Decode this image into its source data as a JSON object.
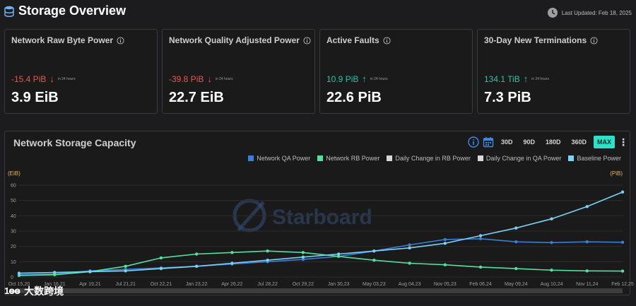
{
  "header": {
    "title": "Storage Overview",
    "last_updated": "Last Updated: Feb 18, 2025"
  },
  "cards": [
    {
      "title": "Network Raw Byte Power",
      "delta": "-15.4 PiB",
      "direction": "down",
      "delta_note": "in 24 hours",
      "value": "3.9 EiB"
    },
    {
      "title": "Network Quality Adjusted Power",
      "delta": "-39.8 PiB",
      "direction": "down",
      "delta_note": "in 24 hours",
      "value": "22.7 EiB"
    },
    {
      "title": "Active Faults",
      "delta": "10.9 PiB",
      "direction": "up",
      "delta_note": "in 24 hours",
      "value": "22.6 PiB"
    },
    {
      "title": "30-Day New Terminations",
      "delta": "134.1 TiB",
      "direction": "up",
      "delta_note": "in 24 hours",
      "value": "7.3 PiB"
    }
  ],
  "chart_panel": {
    "title": "Network Storage Capacity",
    "ranges": [
      "30D",
      "90D",
      "180D",
      "360D",
      "MAX"
    ],
    "active_range": "MAX"
  },
  "watermark": "Starboard",
  "overlay": {
    "mark": "1ꙩꙩ",
    "text": "大数跨境"
  },
  "colors": {
    "qa": "#3b7dd8",
    "rb": "#54e0a0",
    "baseline": "#7ad3f5",
    "down": "#ef5350",
    "up": "#26c6a6",
    "active_range": "#2de0c6",
    "axis_unit": "#f0b25e"
  },
  "chart_data": {
    "type": "line",
    "legend": [
      {
        "name": "Network QA Power",
        "color": "#3b7dd8"
      },
      {
        "name": "Network RB Power",
        "color": "#54e0a0"
      },
      {
        "name": "Daily Change in RB Power",
        "color": "#d9d9d9"
      },
      {
        "name": "Daily Change in QA Power",
        "color": "#d9d9d9"
      },
      {
        "name": "Baseline Power",
        "color": "#7ad3f5"
      }
    ],
    "left_unit": "(EiB)",
    "right_unit": "(PiB)",
    "ylim": [
      0,
      60
    ],
    "yticks": [
      0,
      10,
      20,
      30,
      40,
      50,
      60
    ],
    "grid": true,
    "categories": [
      "Oct 15,20",
      "Jan 16,21",
      "Apr 19,21",
      "Jul 21,21",
      "Oct 22,21",
      "Jan 23,22",
      "Apr 26,22",
      "Jul 28,22",
      "Oct 29,22",
      "Jan 30,23",
      "May 03,23",
      "Aug 04,23",
      "Nov 05,23",
      "Feb 06,24",
      "May 09,24",
      "Aug 10,24",
      "Nov 11,24",
      "Feb 12,25"
    ],
    "series": [
      {
        "name": "Network QA Power",
        "values": [
          1.5,
          2,
          4,
          5,
          6,
          7,
          8.5,
          10,
          11.5,
          13.5,
          17,
          21,
          24.5,
          25,
          23,
          22.5,
          23,
          22.7
        ]
      },
      {
        "name": "Network RB Power",
        "values": [
          1,
          1.5,
          3.5,
          7,
          12.5,
          15,
          16,
          17,
          16,
          13.5,
          11,
          9,
          8,
          6.5,
          5.5,
          4.5,
          4,
          3.9
        ]
      },
      {
        "name": "Baseline Power",
        "values": [
          2.5,
          3,
          3.5,
          4,
          5.5,
          7,
          9,
          11,
          13,
          15,
          17,
          19,
          22,
          27,
          32,
          38,
          46,
          55.5
        ]
      }
    ]
  }
}
